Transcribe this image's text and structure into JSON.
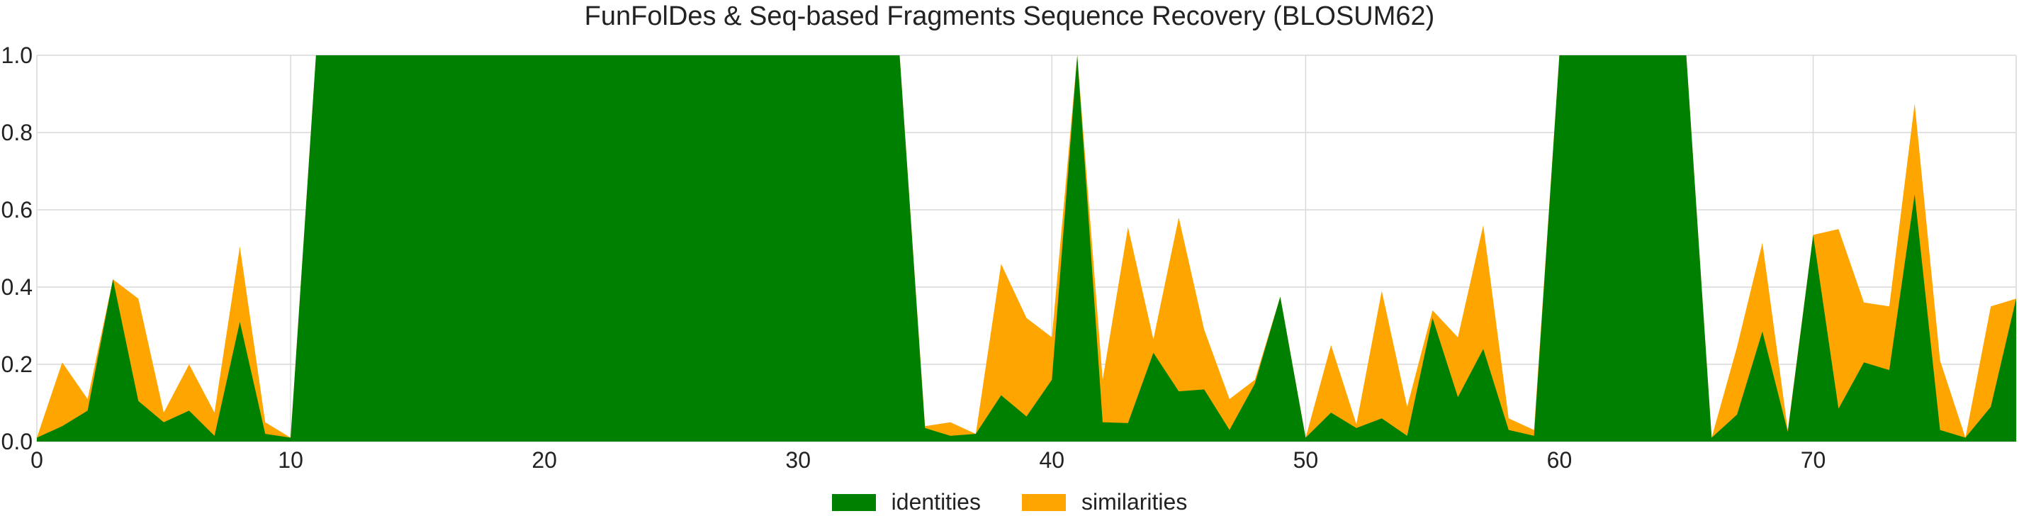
{
  "chart_data": {
    "type": "area",
    "title": "FunFolDes & Seq-based Fragments Sequence Recovery (BLOSUM62)",
    "xlabel": "",
    "ylabel": "",
    "xlim": [
      0,
      78
    ],
    "ylim": [
      0,
      1.0
    ],
    "grid": true,
    "legend_position": "bottom-center",
    "xticks": [
      0,
      10,
      20,
      30,
      40,
      50,
      60,
      70
    ],
    "yticks": [
      0.0,
      0.2,
      0.4,
      0.6,
      0.8,
      1.0
    ],
    "x": [
      0,
      1,
      2,
      3,
      4,
      5,
      6,
      7,
      8,
      9,
      10,
      11,
      12,
      13,
      14,
      15,
      16,
      17,
      18,
      19,
      20,
      21,
      22,
      23,
      24,
      25,
      26,
      27,
      28,
      29,
      30,
      31,
      32,
      33,
      34,
      35,
      36,
      37,
      38,
      39,
      40,
      41,
      42,
      43,
      44,
      45,
      46,
      47,
      48,
      49,
      50,
      51,
      52,
      53,
      54,
      55,
      56,
      57,
      58,
      59,
      60,
      61,
      62,
      63,
      64,
      65,
      66,
      67,
      68,
      69,
      70,
      71,
      72,
      73,
      74,
      75,
      76,
      77,
      78
    ],
    "series": [
      {
        "name": "identities",
        "color": "#008000",
        "values": [
          0.01,
          0.04,
          0.08,
          0.42,
          0.105,
          0.05,
          0.08,
          0.015,
          0.31,
          0.02,
          0.01,
          1.0,
          1.0,
          1.0,
          1.0,
          1.0,
          1.0,
          1.0,
          1.0,
          1.0,
          1.0,
          1.0,
          1.0,
          1.0,
          1.0,
          1.0,
          1.0,
          1.0,
          1.0,
          1.0,
          1.0,
          1.0,
          1.0,
          1.0,
          1.0,
          0.035,
          0.015,
          0.02,
          0.12,
          0.065,
          0.16,
          1.0,
          0.05,
          0.048,
          0.23,
          0.13,
          0.135,
          0.03,
          0.15,
          0.375,
          0.01,
          0.075,
          0.035,
          0.06,
          0.015,
          0.32,
          0.115,
          0.24,
          0.03,
          0.015,
          1.0,
          1.0,
          1.0,
          1.0,
          1.0,
          1.0,
          0.01,
          0.07,
          0.285,
          0.025,
          0.535,
          0.085,
          0.205,
          0.185,
          0.64,
          0.03,
          0.01,
          0.09,
          0.37
        ]
      },
      {
        "name": "similarities",
        "color": "#ffa500",
        "values": [
          0.01,
          0.205,
          0.11,
          0.42,
          0.37,
          0.075,
          0.2,
          0.075,
          0.505,
          0.05,
          0.01,
          1.0,
          1.0,
          1.0,
          1.0,
          1.0,
          1.0,
          1.0,
          1.0,
          1.0,
          1.0,
          1.0,
          1.0,
          1.0,
          1.0,
          1.0,
          1.0,
          1.0,
          1.0,
          1.0,
          1.0,
          1.0,
          1.0,
          1.0,
          1.0,
          0.04,
          0.05,
          0.02,
          0.46,
          0.32,
          0.27,
          1.0,
          0.16,
          0.555,
          0.265,
          0.58,
          0.29,
          0.11,
          0.16,
          0.375,
          0.01,
          0.25,
          0.045,
          0.39,
          0.09,
          0.34,
          0.27,
          0.56,
          0.06,
          0.03,
          1.0,
          1.0,
          1.0,
          1.0,
          1.0,
          1.0,
          0.01,
          0.245,
          0.515,
          0.03,
          0.535,
          0.55,
          0.36,
          0.35,
          0.875,
          0.21,
          0.01,
          0.35,
          0.37
        ]
      }
    ]
  }
}
